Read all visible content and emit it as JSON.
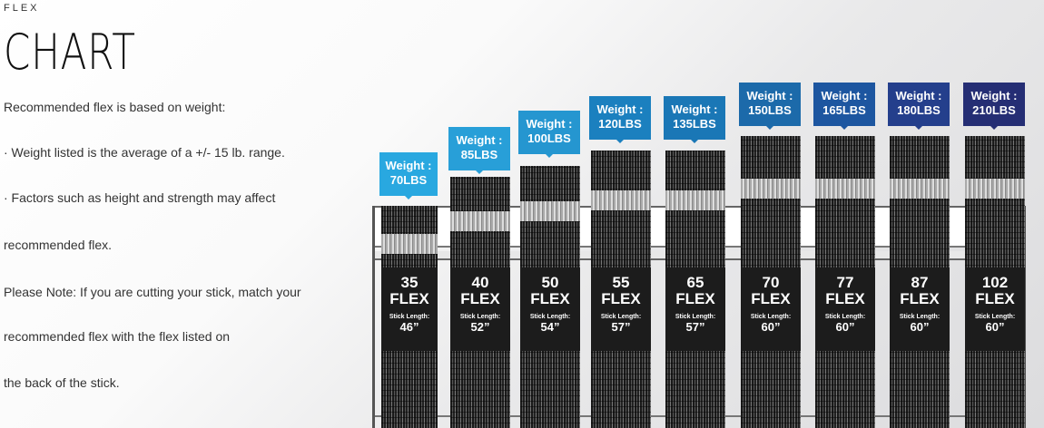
{
  "eyebrow": "FLEX",
  "title": "CHART",
  "paragraphs": [
    "Recommended flex is based on weight:",
    "· Weight listed is the average of a +/- 15 lb. range.",
    "· Factors such as height and strength may affect",
    "recommended flex.",
    "Please Note: If you are cutting your stick, match your",
    "recommended flex with the flex listed on",
    "the back of the stick."
  ],
  "weight_label": "Weight :",
  "flex_word": "FLEX",
  "stick_length_label": "Stick Length:",
  "sticks": [
    {
      "weight": "70LBS",
      "flex": "35",
      "length": "46”",
      "color": "#29a8e0"
    },
    {
      "weight": "85LBS",
      "flex": "40",
      "length": "52”",
      "color": "#289fd8"
    },
    {
      "weight": "100LBS",
      "flex": "50",
      "length": "54”",
      "color": "#2596d0"
    },
    {
      "weight": "120LBS",
      "flex": "55",
      "length": "57”",
      "color": "#1b80bf"
    },
    {
      "weight": "135LBS",
      "flex": "65",
      "length": "57”",
      "color": "#1a77b6"
    },
    {
      "weight": "150LBS",
      "flex": "70",
      "length": "60”",
      "color": "#1c6aaa"
    },
    {
      "weight": "165LBS",
      "flex": "77",
      "length": "60”",
      "color": "#1d56a0"
    },
    {
      "weight": "180LBS",
      "flex": "87",
      "length": "60”",
      "color": "#243f8c"
    },
    {
      "weight": "210LBS",
      "flex": "102",
      "length": "60”",
      "color": "#252e74"
    }
  ]
}
